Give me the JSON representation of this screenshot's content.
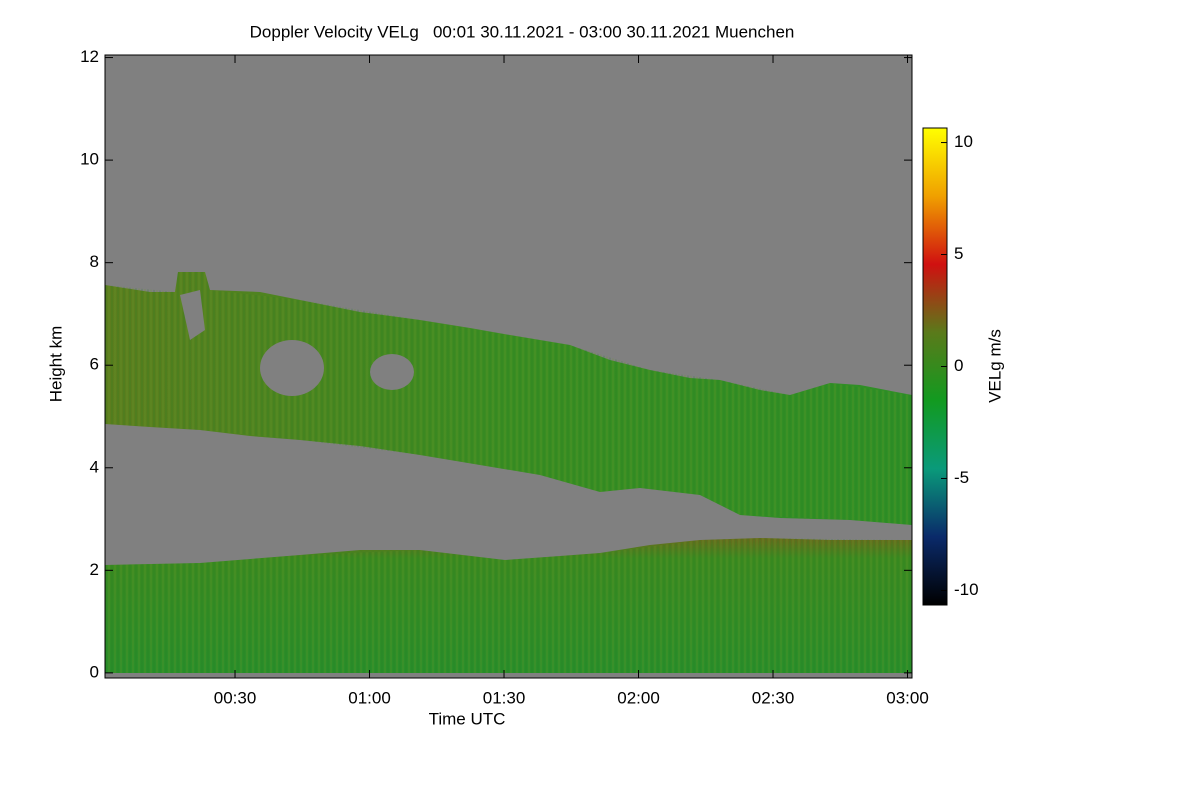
{
  "chart_data": {
    "type": "time-height",
    "title": "Doppler Velocity VELg   00:01 30.11.2021 - 03:00 30.11.2021 Muenchen",
    "x_label": "Time UTC",
    "y_label": "Height km",
    "colorbar_label": "VELg m/s",
    "xlim": [
      1,
      181
    ],
    "xticks": [
      {
        "value": 30,
        "label": "00:30"
      },
      {
        "value": 60,
        "label": "01:00"
      },
      {
        "value": 90,
        "label": "01:30"
      },
      {
        "value": 120,
        "label": "02:00"
      },
      {
        "value": 150,
        "label": "02:30"
      },
      {
        "value": 180,
        "label": "03:00"
      }
    ],
    "ylim": [
      -0.1,
      12.05
    ],
    "yticks": [
      0,
      2,
      4,
      6,
      8,
      10,
      12
    ],
    "clim": [
      -10.65,
      10.65
    ],
    "cticks": [
      -10,
      -5,
      0,
      5,
      10
    ],
    "colormap": [
      "#000000",
      "#0a2a6a",
      "#0a9a7a",
      "#129a20",
      "#5a7a1a",
      "#d01010",
      "#f0a000",
      "#ffff00"
    ]
  }
}
